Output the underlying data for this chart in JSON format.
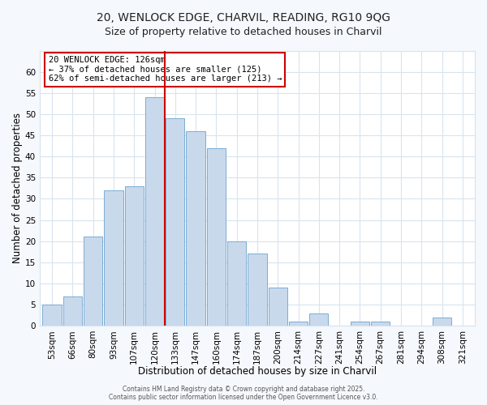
{
  "title1": "20, WENLOCK EDGE, CHARVIL, READING, RG10 9QG",
  "title2": "Size of property relative to detached houses in Charvil",
  "xlabel": "Distribution of detached houses by size in Charvil",
  "ylabel": "Number of detached properties",
  "categories": [
    "53sqm",
    "66sqm",
    "80sqm",
    "93sqm",
    "107sqm",
    "120sqm",
    "133sqm",
    "147sqm",
    "160sqm",
    "174sqm",
    "187sqm",
    "200sqm",
    "214sqm",
    "227sqm",
    "241sqm",
    "254sqm",
    "267sqm",
    "281sqm",
    "294sqm",
    "308sqm",
    "321sqm"
  ],
  "values": [
    5,
    7,
    21,
    32,
    33,
    54,
    49,
    46,
    42,
    20,
    17,
    9,
    1,
    3,
    0,
    1,
    1,
    0,
    0,
    2,
    0
  ],
  "bar_color": "#c9d9ec",
  "bar_edge_color": "#7aadd4",
  "ylim": [
    0,
    65
  ],
  "yticks": [
    0,
    5,
    10,
    15,
    20,
    25,
    30,
    35,
    40,
    45,
    50,
    55,
    60
  ],
  "vline_color": "#cc0000",
  "vline_index": 5.5,
  "annotation_text": "20 WENLOCK EDGE: 126sqm\n← 37% of detached houses are smaller (125)\n62% of semi-detached houses are larger (213) →",
  "annotation_box_color": "#ffffff",
  "annotation_box_edge": "#cc0000",
  "footer1": "Contains HM Land Registry data © Crown copyright and database right 2025.",
  "footer2": "Contains public sector information licensed under the Open Government Licence v3.0.",
  "plot_bg_color": "#ffffff",
  "fig_bg_color": "#f5f8fc",
  "grid_color": "#d8e4ee",
  "title_fontsize": 10,
  "subtitle_fontsize": 9,
  "axis_label_fontsize": 8.5,
  "tick_fontsize": 7.5,
  "annotation_fontsize": 7.5,
  "footer_fontsize": 5.5
}
